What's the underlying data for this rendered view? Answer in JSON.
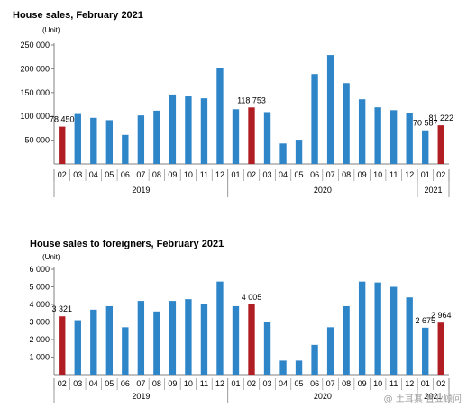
{
  "colors": {
    "bar": "#2e86c9",
    "highlight": "#b01e24",
    "axis": "#808080",
    "text": "#000000"
  },
  "watermark": "@ 土耳其·置业顾问",
  "chart_data": [
    {
      "type": "bar",
      "title": "House sales, February 2021",
      "unit": "(Unit)",
      "ylim": [
        0,
        250000
      ],
      "yticks": [
        50000,
        100000,
        150000,
        200000,
        250000
      ],
      "ytick_labels": [
        "50 000",
        "100 000",
        "150 000",
        "200 000",
        "250 000"
      ],
      "categories": [
        "02",
        "03",
        "04",
        "05",
        "06",
        "07",
        "08",
        "09",
        "10",
        "11",
        "12",
        "01",
        "02",
        "03",
        "04",
        "05",
        "06",
        "07",
        "08",
        "09",
        "10",
        "11",
        "12",
        "01",
        "02"
      ],
      "values": [
        78450,
        105000,
        97000,
        92000,
        61000,
        102000,
        112000,
        146000,
        142000,
        138000,
        201000,
        115000,
        118753,
        109000,
        43000,
        51000,
        189000,
        229000,
        170000,
        136000,
        119000,
        113000,
        107000,
        70587,
        81222
      ],
      "highlighted": [
        0,
        12,
        24
      ],
      "years": [
        {
          "label": "2019",
          "from": 0,
          "to": 10
        },
        {
          "label": "2020",
          "from": 11,
          "to": 22
        },
        {
          "label": "2021",
          "from": 23,
          "to": 24
        }
      ],
      "data_labels": [
        {
          "index": 0,
          "text": "78 450"
        },
        {
          "index": 12,
          "text": "118 753"
        },
        {
          "index": 23,
          "text": "70 587"
        },
        {
          "index": 24,
          "text": "81 222"
        }
      ]
    },
    {
      "type": "bar",
      "title": "House sales to foreigners, February 2021",
      "unit": "(Unit)",
      "ylim": [
        0,
        6000
      ],
      "yticks": [
        1000,
        2000,
        3000,
        4000,
        5000,
        6000
      ],
      "ytick_labels": [
        "1 000",
        "2 000",
        "3 000",
        "4 000",
        "5 000",
        "6 000"
      ],
      "categories": [
        "02",
        "03",
        "04",
        "05",
        "06",
        "07",
        "08",
        "09",
        "10",
        "11",
        "12",
        "01",
        "02",
        "03",
        "04",
        "05",
        "06",
        "07",
        "08",
        "09",
        "10",
        "11",
        "12",
        "01",
        "02"
      ],
      "values": [
        3321,
        3100,
        3700,
        3900,
        2700,
        4200,
        3600,
        4200,
        4300,
        4000,
        5300,
        3900,
        4005,
        3000,
        800,
        800,
        1700,
        2700,
        3900,
        5300,
        5250,
        5000,
        4400,
        2675,
        2964
      ],
      "highlighted": [
        0,
        12,
        24
      ],
      "years": [
        {
          "label": "2019",
          "from": 0,
          "to": 10
        },
        {
          "label": "2020",
          "from": 11,
          "to": 22
        },
        {
          "label": "2021",
          "from": 23,
          "to": 24
        }
      ],
      "data_labels": [
        {
          "index": 0,
          "text": "3 321"
        },
        {
          "index": 12,
          "text": "4 005"
        },
        {
          "index": 23,
          "text": "2 675"
        },
        {
          "index": 24,
          "text": "2 964"
        }
      ]
    }
  ]
}
